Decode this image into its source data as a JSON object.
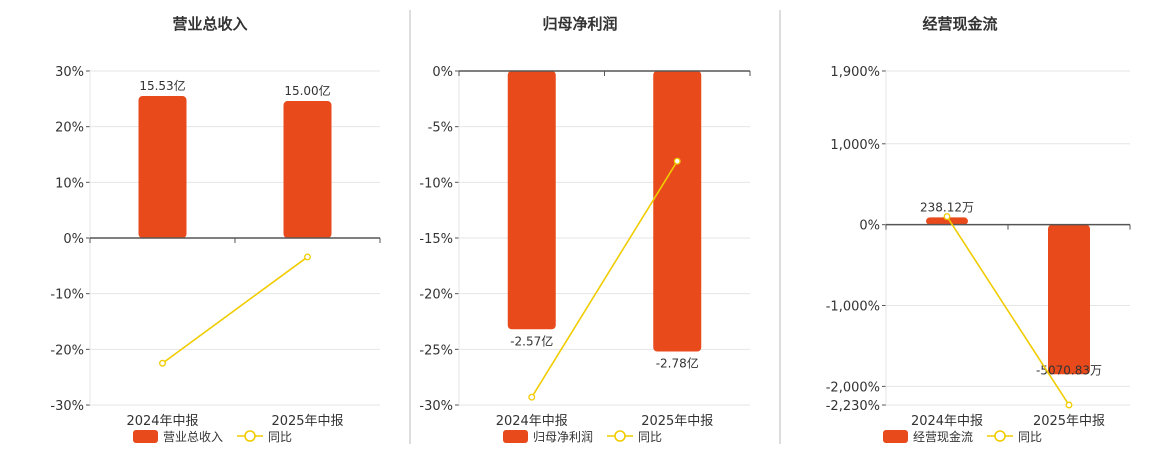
{
  "colors": {
    "bar": "#e84a1c",
    "line": "#f0cc00",
    "grid": "#e6e6e6",
    "axis": "#555555",
    "text": "#333333",
    "divider": "#bbbbbb"
  },
  "legend_line_label": "同比",
  "chart_data": [
    {
      "type": "bar",
      "title": "营业总收入",
      "categories": [
        "2024年中报",
        "2025年中报"
      ],
      "series": [
        {
          "name": "营业总收入",
          "type": "bar",
          "values": [
            25.5,
            24.6
          ],
          "labels": [
            "15.53亿",
            "15.00亿"
          ]
        },
        {
          "name": "同比",
          "type": "line",
          "values": [
            -22.5,
            -3.4
          ]
        }
      ],
      "ylim": [
        -30,
        30
      ],
      "yticks": [
        30,
        20,
        10,
        0,
        -10,
        -20,
        -30
      ],
      "ytick_labels": [
        "30%",
        "20%",
        "10%",
        "0%",
        "-10%",
        "-20%",
        "-30%"
      ],
      "grid": true,
      "legend": "bottom"
    },
    {
      "type": "bar",
      "title": "归母净利润",
      "categories": [
        "2024年中报",
        "2025年中报"
      ],
      "series": [
        {
          "name": "归母净利润",
          "type": "bar",
          "values": [
            -23.2,
            -25.2
          ],
          "labels": [
            "-2.57亿",
            "-2.78亿"
          ]
        },
        {
          "name": "同比",
          "type": "line",
          "values": [
            -29.3,
            -8.1
          ]
        }
      ],
      "ylim": [
        -30,
        0
      ],
      "yticks": [
        0,
        -5,
        -10,
        -15,
        -20,
        -25,
        -30
      ],
      "ytick_labels": [
        "0%",
        "-5%",
        "-10%",
        "-15%",
        "-20%",
        "-25%",
        "-30%"
      ],
      "grid": true,
      "legend": "bottom"
    },
    {
      "type": "bar",
      "title": "经营现金流",
      "categories": [
        "2024年中报",
        "2025年中报"
      ],
      "series": [
        {
          "name": "经营现金流",
          "type": "bar",
          "values": [
            90,
            -1850
          ],
          "labels": [
            "238.12万",
            "-5070.83万"
          ]
        },
        {
          "name": "同比",
          "type": "line",
          "values": [
            100,
            -2230
          ]
        }
      ],
      "ylim": [
        -2230,
        1900
      ],
      "yticks": [
        1900,
        1000,
        0,
        -1000,
        -2000,
        -2230
      ],
      "ytick_labels": [
        "1,900%",
        "1,000%",
        "0%",
        "-1,000%",
        "-2,000%",
        "-2,230%"
      ],
      "grid": true,
      "legend": "bottom"
    }
  ]
}
